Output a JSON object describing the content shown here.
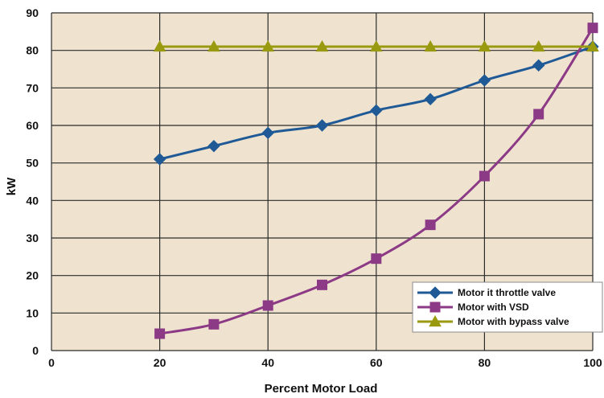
{
  "chart_data": {
    "type": "line",
    "xlabel": "Percent Motor Load",
    "ylabel": "kW",
    "xlim": [
      0,
      100
    ],
    "ylim": [
      0,
      90
    ],
    "xticks": [
      0,
      20,
      40,
      60,
      80,
      100
    ],
    "yticks": [
      0,
      10,
      20,
      30,
      40,
      50,
      60,
      70,
      80,
      90
    ],
    "grid": true,
    "legend_position": "bottom-right",
    "plot_background": "#efe3cf",
    "series": [
      {
        "name": "Motor it throttle valve",
        "color": "#1f5a96",
        "marker": "diamond",
        "x": [
          20,
          30,
          40,
          50,
          60,
          70,
          80,
          90,
          100
        ],
        "y": [
          51,
          54.5,
          58,
          60,
          64,
          67,
          72,
          76,
          81
        ]
      },
      {
        "name": "Motor with VSD",
        "color": "#8c3a86",
        "marker": "square",
        "x": [
          20,
          30,
          40,
          50,
          60,
          70,
          80,
          90,
          100
        ],
        "y": [
          4.5,
          7,
          12,
          17.5,
          24.5,
          33.5,
          46.5,
          63,
          86
        ]
      },
      {
        "name": "Motor with bypass valve",
        "color": "#9a9a10",
        "marker": "triangle",
        "x": [
          20,
          30,
          40,
          50,
          60,
          70,
          80,
          90,
          100
        ],
        "y": [
          81,
          81,
          81,
          81,
          81,
          81,
          81,
          81,
          81
        ]
      }
    ]
  }
}
